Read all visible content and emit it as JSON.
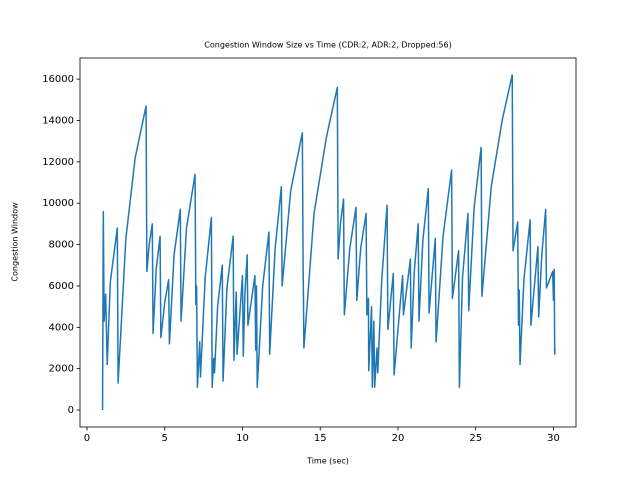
{
  "chart_data": {
    "type": "line",
    "title": "Congestion Window Size vs Time (CDR:2, ADR:2, Dropped:56)",
    "xlabel": "Time (sec)",
    "ylabel": "Congestion Window",
    "color": "#1f77b4",
    "xlim": [
      -0.45,
      31.45
    ],
    "ylim": [
      -820,
      17020
    ],
    "xticks": [
      0,
      5,
      10,
      15,
      20,
      25,
      30
    ],
    "yticks": [
      0,
      2000,
      4000,
      6000,
      8000,
      10000,
      12000,
      14000,
      16000
    ],
    "grid": false,
    "x": [
      1.0,
      1.05,
      1.1,
      1.2,
      1.3,
      1.5,
      1.95,
      2.0,
      2.5,
      3.1,
      3.8,
      3.85,
      4.0,
      4.2,
      4.25,
      4.45,
      4.7,
      4.75,
      5.0,
      5.25,
      5.3,
      5.6,
      6.0,
      6.05,
      6.4,
      6.95,
      7.0,
      7.05,
      7.1,
      7.25,
      7.3,
      7.6,
      8.0,
      8.05,
      8.15,
      8.2,
      8.4,
      8.7,
      8.75,
      9.0,
      9.4,
      9.45,
      9.6,
      9.65,
      10.0,
      10.05,
      10.15,
      10.3,
      10.35,
      10.8,
      10.85,
      10.9,
      10.95,
      11.3,
      11.7,
      11.75,
      12.1,
      12.5,
      12.55,
      13.1,
      13.85,
      13.9,
      13.92,
      13.95,
      14.6,
      15.4,
      16.1,
      16.15,
      16.3,
      16.5,
      16.55,
      16.9,
      17.3,
      17.35,
      17.6,
      17.95,
      18.0,
      18.1,
      18.12,
      18.3,
      18.35,
      18.45,
      18.5,
      18.65,
      18.7,
      18.95,
      19.3,
      19.35,
      19.7,
      19.75,
      20.3,
      20.35,
      20.8,
      20.85,
      21.05,
      21.3,
      21.35,
      21.6,
      21.95,
      22.0,
      22.4,
      22.45,
      22.9,
      23.45,
      23.5,
      23.9,
      23.95,
      24.15,
      24.5,
      24.55,
      24.9,
      25.35,
      25.4,
      26.0,
      26.7,
      27.35,
      27.4,
      27.7,
      27.75,
      27.8,
      27.85,
      28.1,
      28.5,
      28.55,
      29.0,
      29.05,
      29.25,
      29.5,
      29.55,
      29.95,
      30.0,
      30.05,
      30.08,
      30.1
    ],
    "values": [
      0,
      9600,
      4300,
      5600,
      2200,
      6200,
      8800,
      1300,
      8300,
      12200,
      14700,
      6700,
      8000,
      9000,
      3700,
      6800,
      8400,
      3500,
      5200,
      6300,
      3200,
      7500,
      9700,
      4300,
      8800,
      11400,
      5100,
      6000,
      1100,
      3300,
      1600,
      6400,
      9300,
      1100,
      2500,
      1800,
      5000,
      7000,
      1400,
      5900,
      8400,
      2400,
      5700,
      2700,
      6500,
      2600,
      5500,
      7500,
      4100,
      6500,
      2900,
      6000,
      1100,
      6000,
      8600,
      2700,
      7800,
      10800,
      6000,
      10600,
      13400,
      6800,
      5700,
      3000,
      9500,
      13200,
      15600,
      7300,
      9000,
      10200,
      4600,
      7800,
      9800,
      5300,
      7800,
      9500,
      4600,
      5400,
      1900,
      5000,
      1100,
      4300,
      1100,
      3000,
      1800,
      6200,
      9900,
      3900,
      6600,
      1700,
      6500,
      4600,
      7300,
      3000,
      6700,
      9000,
      4300,
      8200,
      10700,
      4700,
      8300,
      3300,
      8400,
      11600,
      5400,
      7700,
      1100,
      6400,
      9500,
      4800,
      9800,
      12700,
      5500,
      10800,
      14000,
      16200,
      7700,
      9100,
      4100,
      5800,
      2200,
      6300,
      9200,
      4100,
      7900,
      4500,
      7500,
      9700,
      5900,
      6700,
      5300,
      6800,
      2700,
      3000
    ]
  }
}
